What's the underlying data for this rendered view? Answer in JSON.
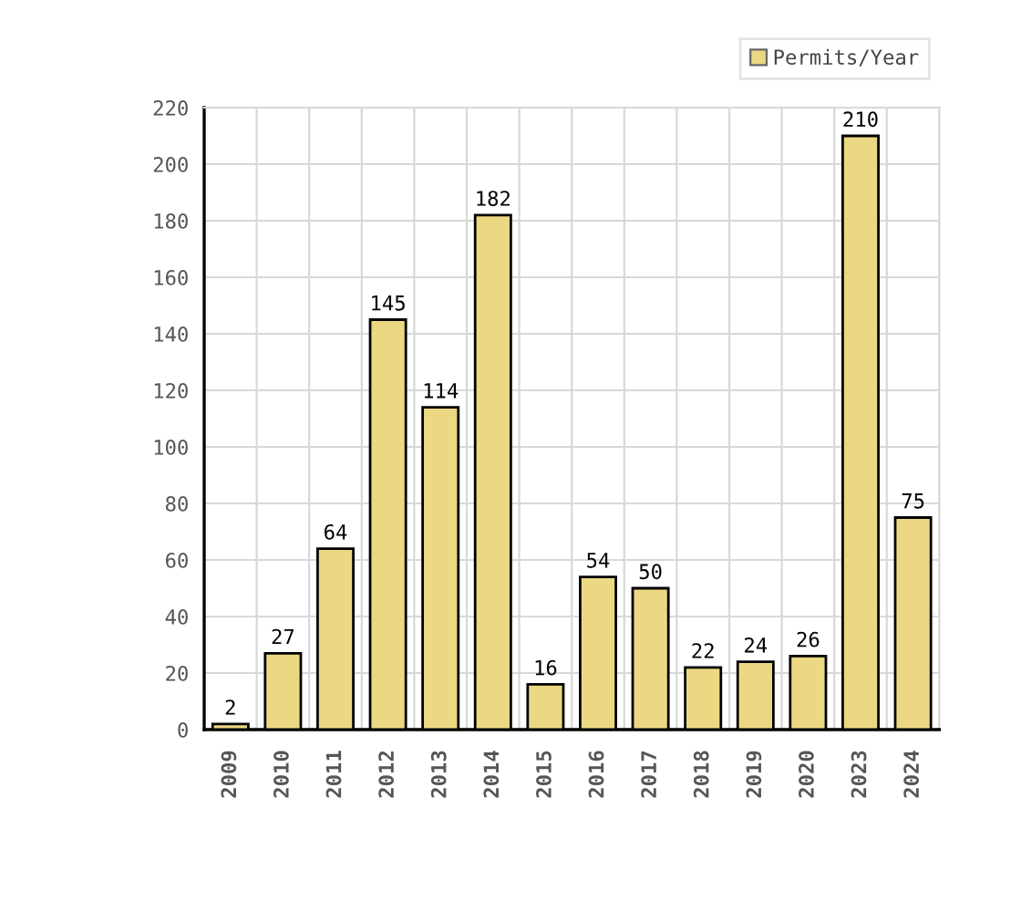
{
  "chart_data": {
    "type": "bar",
    "categories": [
      "2009",
      "2010",
      "2011",
      "2012",
      "2013",
      "2014",
      "2015",
      "2016",
      "2017",
      "2018",
      "2019",
      "2020",
      "2023",
      "2024"
    ],
    "series": [
      {
        "name": "Permits/Year",
        "color": "#ecd882",
        "values": [
          2,
          27,
          64,
          145,
          114,
          182,
          16,
          54,
          50,
          22,
          24,
          26,
          210,
          75
        ]
      }
    ],
    "ylim": [
      0,
      220
    ],
    "yticks": [
      0,
      20,
      40,
      60,
      80,
      100,
      120,
      140,
      160,
      180,
      200,
      220
    ],
    "grid": true,
    "legend": "top right",
    "data_labels": true
  }
}
